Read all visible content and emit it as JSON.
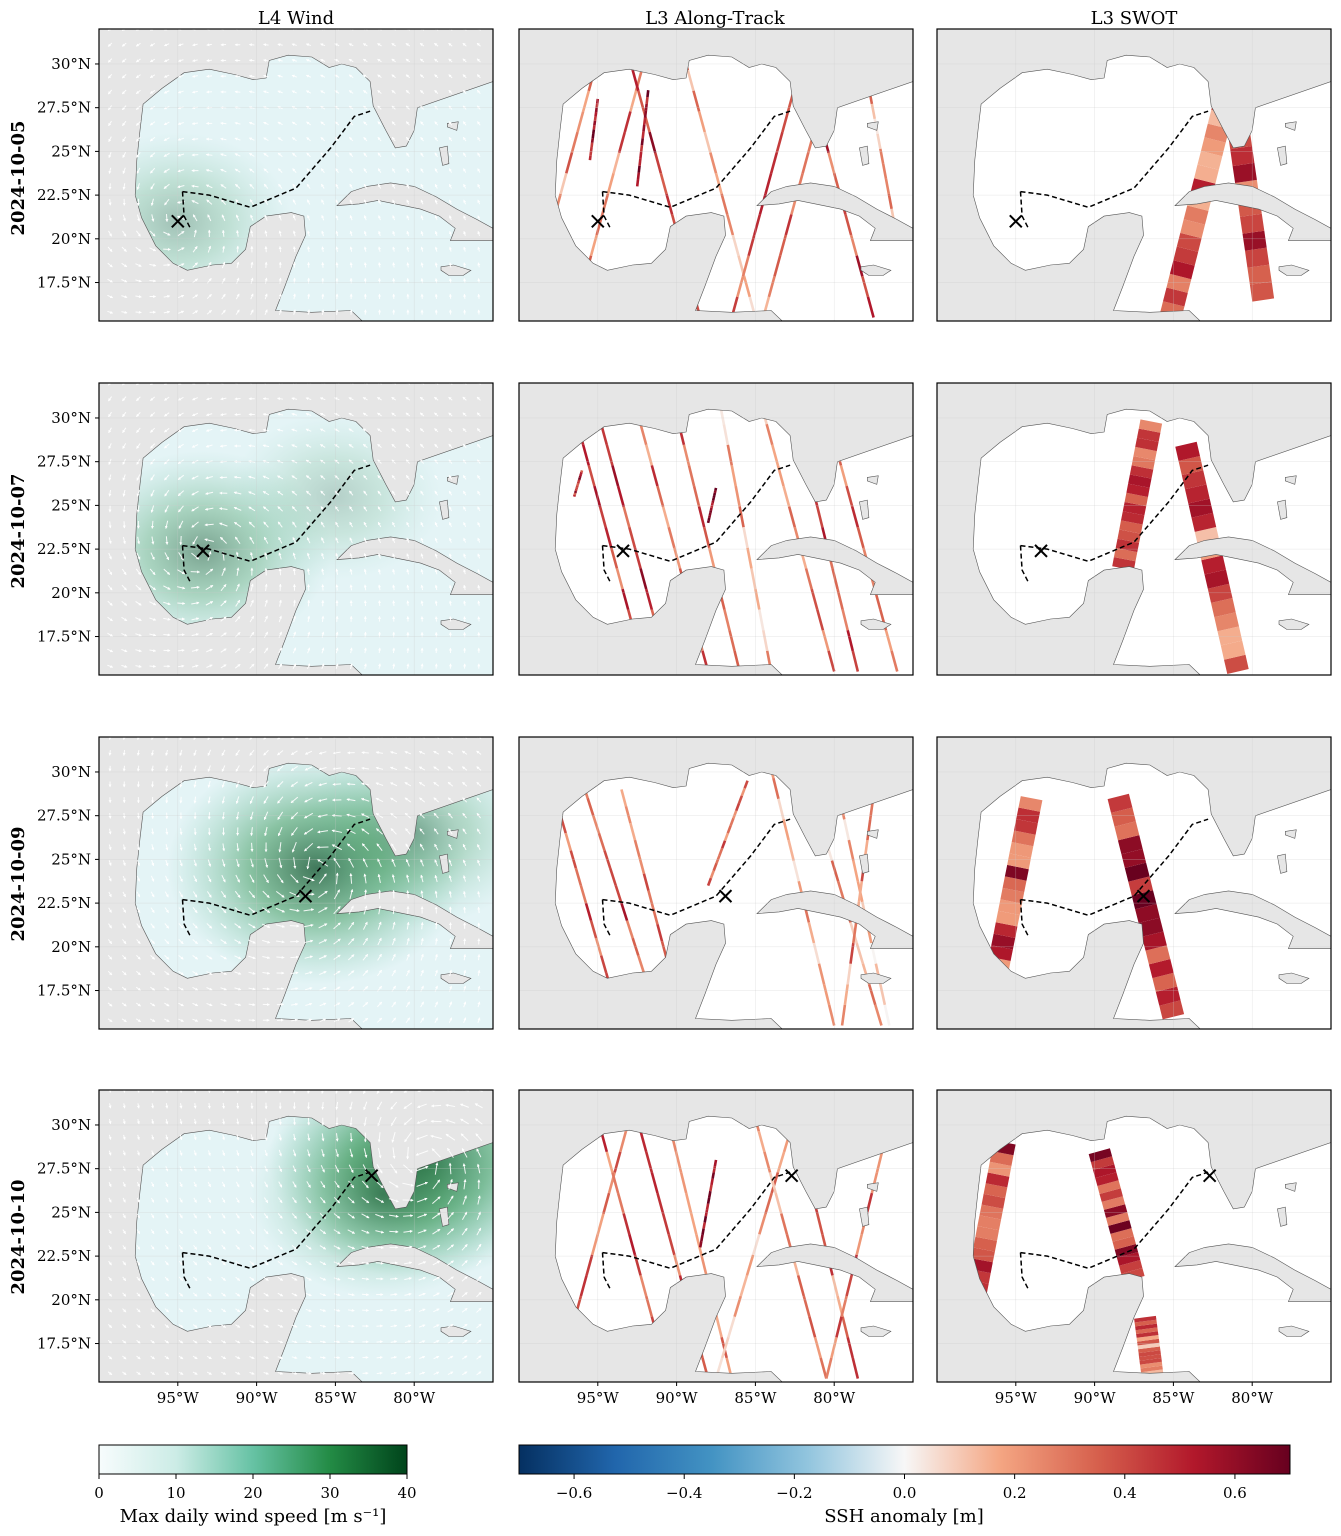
{
  "chart_data": {
    "type": "map-panels",
    "columns": [
      "L4 Wind",
      "L3 Along-Track",
      "L3 SWOT"
    ],
    "rows": [
      "2024-10-05",
      "2024-10-07",
      "2024-10-09",
      "2024-10-10"
    ],
    "lat_ticks": [
      "30°N",
      "27.5°N",
      "25°N",
      "22.5°N",
      "20°N",
      "17.5°N"
    ],
    "lat_values": [
      30,
      27.5,
      25,
      22.5,
      20,
      17.5
    ],
    "lon_ticks": [
      "95°W",
      "90°W",
      "85°W",
      "80°W"
    ],
    "lon_values": [
      -95,
      -90,
      -85,
      -80
    ],
    "extent": {
      "lon": [
        -100,
        -75
      ],
      "lat": [
        15.3,
        32
      ]
    },
    "track": [
      [
        -94.7,
        22.7
      ],
      [
        -94.6,
        21.3
      ],
      [
        -94.2,
        20.6
      ]
    ],
    "track_main": [
      [
        -94.7,
        22.7
      ],
      [
        -93.0,
        22.5
      ],
      [
        -90.4,
        21.8
      ],
      [
        -87.5,
        22.9
      ],
      [
        -85.3,
        25.2
      ],
      [
        -83.8,
        27.0
      ],
      [
        -82.8,
        27.3
      ]
    ],
    "storm_positions": [
      {
        "date": "2024-10-05",
        "lon": -95.0,
        "lat": 21.0
      },
      {
        "date": "2024-10-07",
        "lon": -93.4,
        "lat": 22.4
      },
      {
        "date": "2024-10-09",
        "lon": -86.9,
        "lat": 22.9
      },
      {
        "date": "2024-10-10",
        "lon": -82.7,
        "lat": 27.1
      }
    ],
    "wind_colorbar": {
      "label": "Max daily wind speed [m s⁻¹]",
      "range": [
        0,
        40
      ],
      "ticks": [
        "0",
        "10",
        "20",
        "30",
        "40"
      ],
      "colormap": "BuGn",
      "colors": [
        "#f7fcfd",
        "#ccece6",
        "#66c2a4",
        "#238b45",
        "#00441b"
      ]
    },
    "ssh_colorbar": {
      "label": "SSH anomaly [m]",
      "range": [
        -0.7,
        0.7
      ],
      "ticks": [
        "−0.6",
        "−0.4",
        "−0.2",
        "0.0",
        "0.2",
        "0.4",
        "0.6"
      ],
      "tick_values": [
        -0.6,
        -0.4,
        -0.2,
        0.0,
        0.2,
        0.4,
        0.6
      ],
      "colormap": "RdBu_r",
      "colors": [
        "#053061",
        "#2166ac",
        "#4393c3",
        "#92c5de",
        "#f7f7f7",
        "#f4a582",
        "#d6604d",
        "#b2182b",
        "#67001f"
      ]
    },
    "land_color": "#e6e6e6",
    "track_color": "#000000"
  }
}
